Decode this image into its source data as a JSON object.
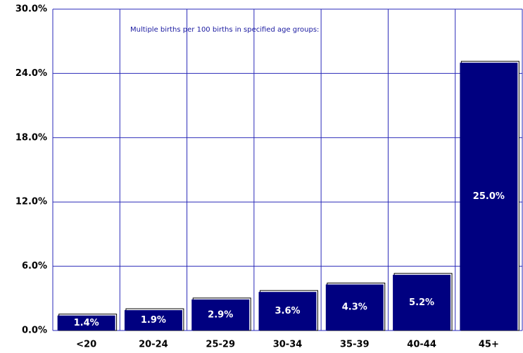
{
  "chart_data": {
    "type": "bar",
    "annotation": "Multiple births per 100 births in specified age groups:",
    "categories": [
      "<20",
      "20-24",
      "25-29",
      "30-34",
      "35-39",
      "40-44",
      "45+"
    ],
    "values": [
      1.4,
      1.9,
      2.9,
      3.6,
      4.3,
      5.2,
      25.0
    ],
    "value_labels": [
      "1.4%",
      "1.9%",
      "2.9%",
      "3.6%",
      "4.3%",
      "5.2%",
      "25.0%"
    ],
    "color": "#000080",
    "ylim": [
      0,
      30
    ],
    "yticks": [
      {
        "value": 0,
        "label": "0.0%"
      },
      {
        "value": 6,
        "label": "6.0%"
      },
      {
        "value": 12,
        "label": "12.0%"
      },
      {
        "value": 18,
        "label": "18.0%"
      },
      {
        "value": 24,
        "label": "24.0%"
      },
      {
        "value": 30,
        "label": "30.0%"
      }
    ],
    "grid": true
  }
}
